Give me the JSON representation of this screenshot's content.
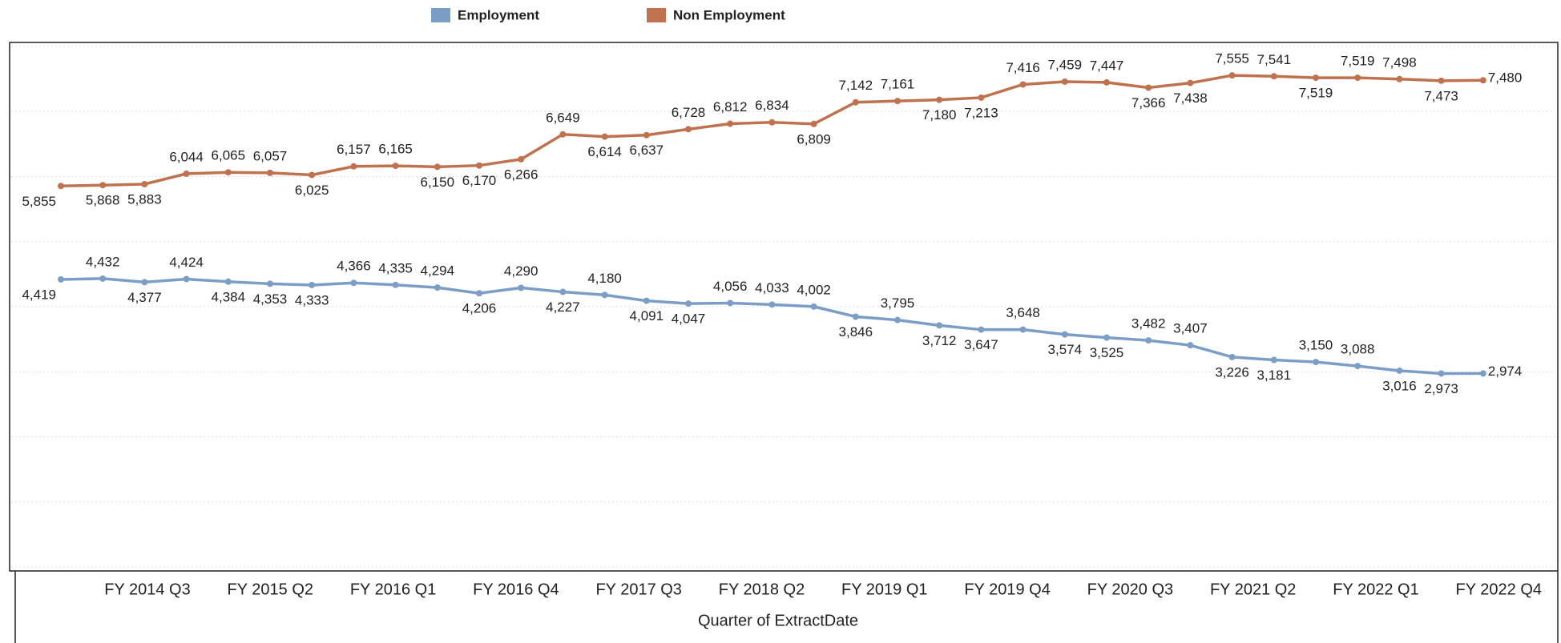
{
  "chart_data": {
    "type": "line",
    "x_label": "Quarter of ExtractDate",
    "categories": [
      null,
      "FY 2014 Q3",
      null,
      null,
      "FY 2015 Q2",
      null,
      null,
      "FY 2016 Q1",
      null,
      null,
      "FY 2016 Q4",
      null,
      null,
      "FY 2017 Q3",
      null,
      null,
      "FY 2018 Q2",
      null,
      null,
      "FY 2019 Q1",
      null,
      null,
      "FY 2019 Q4",
      null,
      null,
      "FY 2020 Q3",
      null,
      null,
      "FY 2021 Q2",
      null,
      null,
      "FY 2022 Q1",
      null,
      null,
      "FY 2022 Q4"
    ],
    "series": [
      {
        "name": "Employment",
        "color": "#7b9ec6",
        "values": [
          4419,
          4432,
          4377,
          4424,
          4384,
          4353,
          4333,
          4366,
          4335,
          4294,
          4206,
          4290,
          4227,
          4180,
          4091,
          4047,
          4056,
          4033,
          4002,
          3846,
          3795,
          3712,
          3647,
          3648,
          3574,
          3525,
          3482,
          3407,
          3226,
          3181,
          3150,
          3088,
          3016,
          2973,
          2974
        ],
        "value_labels": [
          "4,419",
          "4,432",
          "4,377",
          "4,424",
          "4,384",
          "4,353",
          "4,333",
          "4,366",
          "4,335",
          "4,294",
          "4,206",
          "4,290",
          "4,227",
          "4,180",
          "4,091",
          "4,047",
          "4,056",
          "4,033",
          "4,002",
          "3,846",
          "3,795",
          "3,712",
          "3,647",
          "3,648",
          "3,574",
          "3,525",
          "3,482",
          "3,407",
          "3,226",
          "3,181",
          "3,150",
          "3,088",
          "3,016",
          "2,973",
          "2,974"
        ]
      },
      {
        "name": "Non Employment",
        "color": "#c0724f",
        "values": [
          5855,
          5868,
          5883,
          6044,
          6065,
          6057,
          6025,
          6157,
          6165,
          6150,
          6170,
          6266,
          6649,
          6614,
          6637,
          6728,
          6812,
          6834,
          6809,
          7142,
          7161,
          7180,
          7213,
          7416,
          7459,
          7447,
          7366,
          7438,
          7555,
          7541,
          7519,
          7519,
          7498,
          7473,
          7480
        ],
        "value_labels": [
          "5,855",
          "5,868",
          "5,883",
          "6,044",
          "6,065",
          "6,057",
          "6,025",
          "6,157",
          "6,165",
          "6,150",
          "6,170",
          "6,266",
          "6,649",
          "6,614",
          "6,637",
          "6,728",
          "6,812",
          "6,834",
          "6,809",
          "7,142",
          "7,161",
          "7,180",
          "7,213",
          "7,416",
          "7,459",
          "7,447",
          "7,366",
          "7,438",
          "7,555",
          "7,541",
          "7,519",
          "7,519",
          "7,498",
          "7,473",
          "7,480"
        ]
      }
    ],
    "ylim": [
      0,
      8000
    ],
    "yticks": [
      0,
      1000,
      2000,
      3000,
      4000,
      5000,
      6000,
      7000,
      8000
    ],
    "grid": true
  }
}
